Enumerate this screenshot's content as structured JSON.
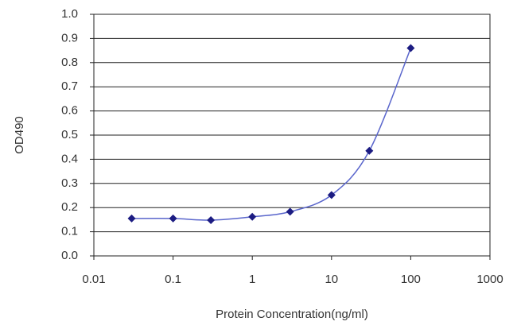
{
  "chart_data": {
    "type": "line",
    "xlabel": "Protein Concentration(ng/ml)",
    "ylabel": "OD490",
    "x": [
      0.03,
      0.1,
      0.3,
      1,
      3,
      10,
      30,
      100
    ],
    "series": [
      {
        "name": "OD490",
        "color": "#5a66cc",
        "marker_color": "#1c1c82",
        "values": [
          0.155,
          0.155,
          0.148,
          0.162,
          0.183,
          0.252,
          0.435,
          0.86
        ]
      }
    ],
    "xscale": "log",
    "xlim": [
      0.01,
      1000
    ],
    "xticks": [
      0.01,
      0.1,
      1,
      10,
      100,
      1000
    ],
    "ylim": [
      0,
      1
    ],
    "yticks": [
      {
        "value": 0,
        "label": "0.0"
      },
      0.1,
      0.2,
      0.3,
      0.4,
      0.5,
      0.6,
      0.7,
      0.8,
      0.9,
      {
        "value": 1,
        "label": "1.0"
      }
    ],
    "grid": true
  }
}
